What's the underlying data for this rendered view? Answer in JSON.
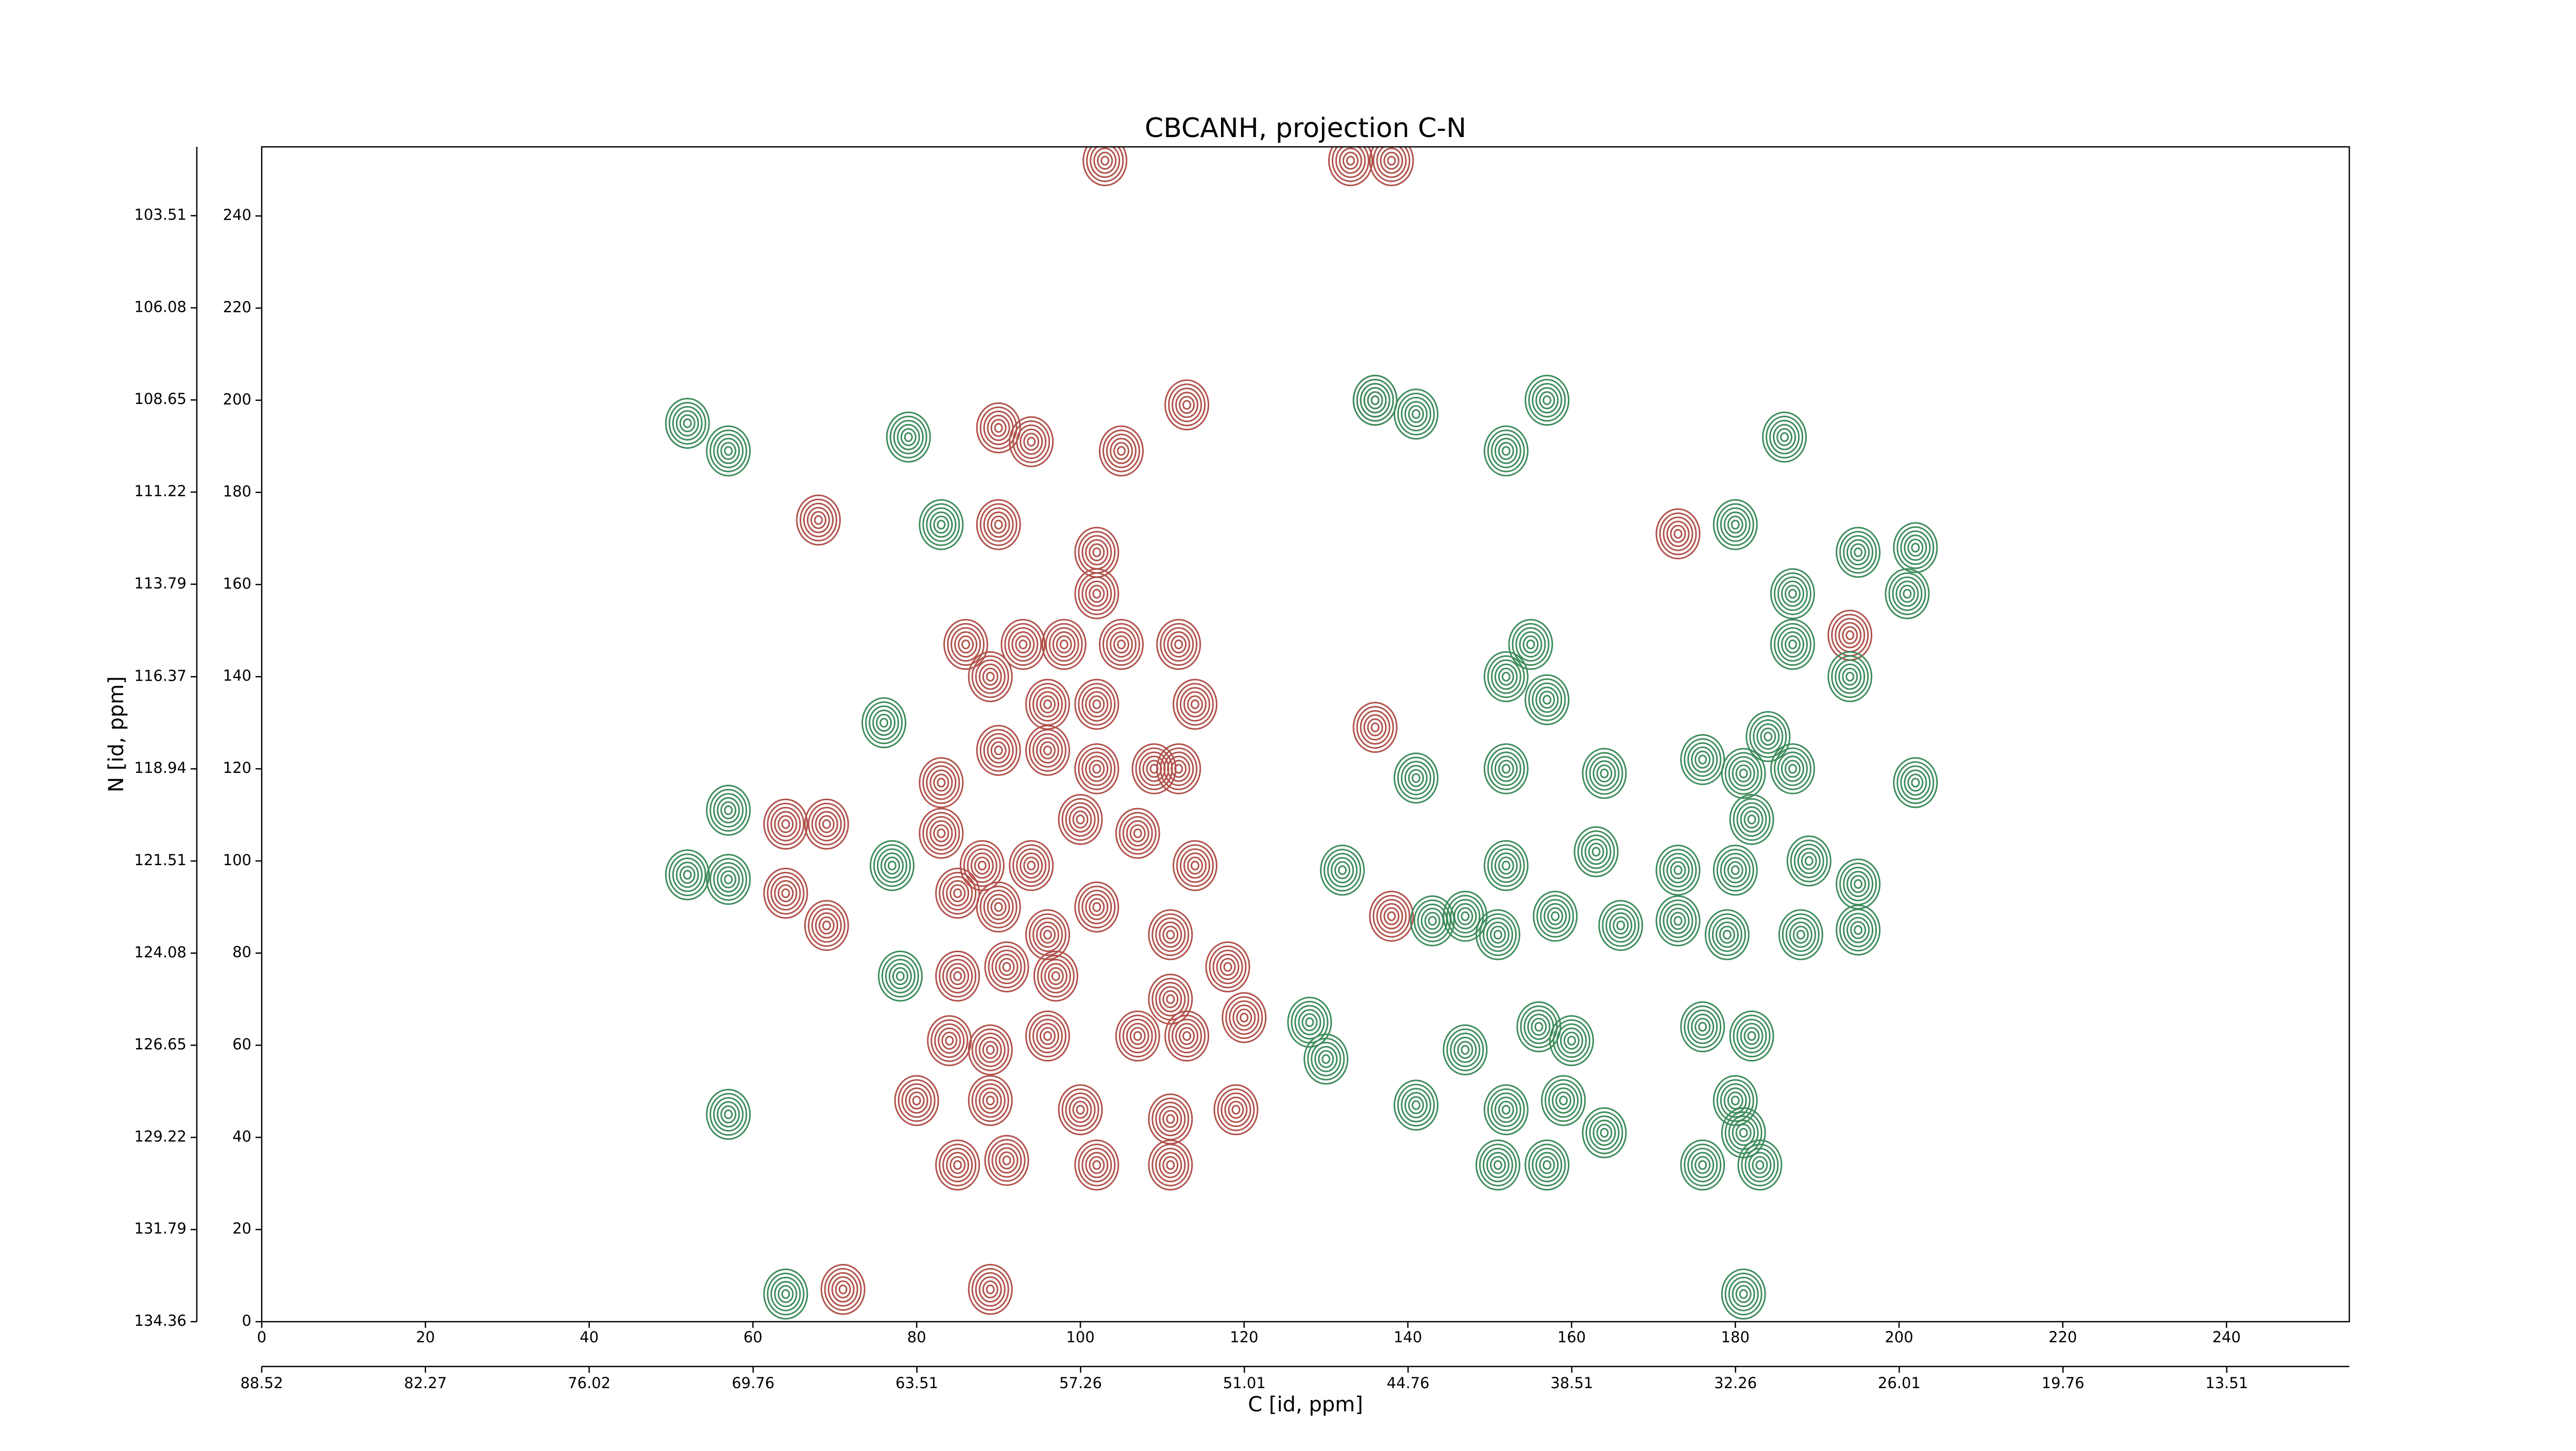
{
  "chart_data": {
    "type": "contour",
    "title": "CBCANH, projection C-N",
    "x_label": "C [id, ppm]",
    "y_label": "N [id, ppm]",
    "xlim": [
      0,
      255
    ],
    "ylim": [
      0,
      255
    ],
    "xticks": [
      0,
      20,
      40,
      60,
      80,
      100,
      120,
      140,
      160,
      180,
      200,
      220,
      240
    ],
    "yticks": [
      0,
      20,
      40,
      60,
      80,
      100,
      120,
      140,
      160,
      180,
      200,
      220,
      240
    ],
    "x2lim": [
      88.52,
      8.83
    ],
    "x2ticks": [
      88.52,
      82.27,
      76.02,
      69.76,
      63.51,
      57.26,
      51.01,
      44.76,
      38.51,
      32.26,
      26.01,
      19.76,
      13.51
    ],
    "y2lim": [
      134.36,
      101.59
    ],
    "y2ticks": [
      134.36,
      131.79,
      129.22,
      126.65,
      124.08,
      121.51,
      118.94,
      116.37,
      113.79,
      111.22,
      108.65,
      106.08,
      103.51
    ],
    "series": [
      {
        "color": "#b0514a",
        "x": [
          90,
          94,
          68,
          90,
          105,
          113,
          136,
          138,
          103,
          133,
          102,
          102,
          112,
          89,
          86,
          93,
          98,
          105,
          114,
          96,
          102,
          90,
          96,
          102,
          109,
          112,
          83,
          64,
          69,
          64,
          69,
          83,
          88,
          94,
          100,
          107,
          114,
          85,
          90,
          96,
          102,
          85,
          91,
          97,
          111,
          118,
          111,
          136,
          138,
          89,
          84,
          96,
          107,
          113,
          120,
          80,
          89,
          100,
          111,
          119,
          85,
          91,
          102,
          111,
          71,
          89,
          173,
          194
        ],
        "y": [
          194,
          191,
          174,
          173,
          189,
          199,
          200,
          252,
          252,
          252,
          167,
          158,
          147,
          140,
          147,
          147,
          147,
          147,
          134,
          134,
          134,
          124,
          124,
          120,
          120,
          120,
          117,
          108,
          108,
          93,
          86,
          106,
          99,
          99,
          109,
          106,
          99,
          93,
          90,
          84,
          90,
          75,
          77,
          75,
          84,
          77,
          70,
          129,
          88,
          59,
          61,
          62,
          62,
          62,
          66,
          48,
          48,
          46,
          44,
          46,
          34,
          35,
          34,
          34,
          7,
          7,
          171,
          149
        ]
      },
      {
        "color": "#3d8c5a",
        "x": [
          52,
          57,
          79,
          83,
          76,
          57,
          52,
          57,
          77,
          78,
          57,
          64,
          132,
          128,
          130,
          141,
          141,
          143,
          147,
          151,
          155,
          152,
          157,
          152,
          152,
          158,
          164,
          163,
          166,
          156,
          160,
          147,
          152,
          159,
          164,
          151,
          157,
          157,
          152,
          173,
          176,
          181,
          184,
          187,
          182,
          180,
          189,
          195,
          173,
          179,
          188,
          176,
          182,
          180,
          181,
          176,
          183,
          187,
          194,
          187,
          195,
          202,
          201,
          202,
          195,
          180,
          186,
          181,
          136,
          141
        ],
        "y": [
          195,
          189,
          192,
          173,
          130,
          111,
          97,
          96,
          99,
          75,
          45,
          6,
          98,
          65,
          57,
          47,
          118,
          87,
          88,
          84,
          147,
          140,
          135,
          120,
          99,
          88,
          119,
          102,
          86,
          64,
          61,
          59,
          46,
          48,
          41,
          34,
          34,
          200,
          189,
          98,
          122,
          119,
          127,
          120,
          109,
          98,
          100,
          95,
          87,
          84,
          84,
          64,
          62,
          48,
          41,
          34,
          34,
          147,
          140,
          158,
          167,
          168,
          158,
          117,
          85,
          173,
          192,
          6,
          200,
          197
        ]
      }
    ]
  }
}
